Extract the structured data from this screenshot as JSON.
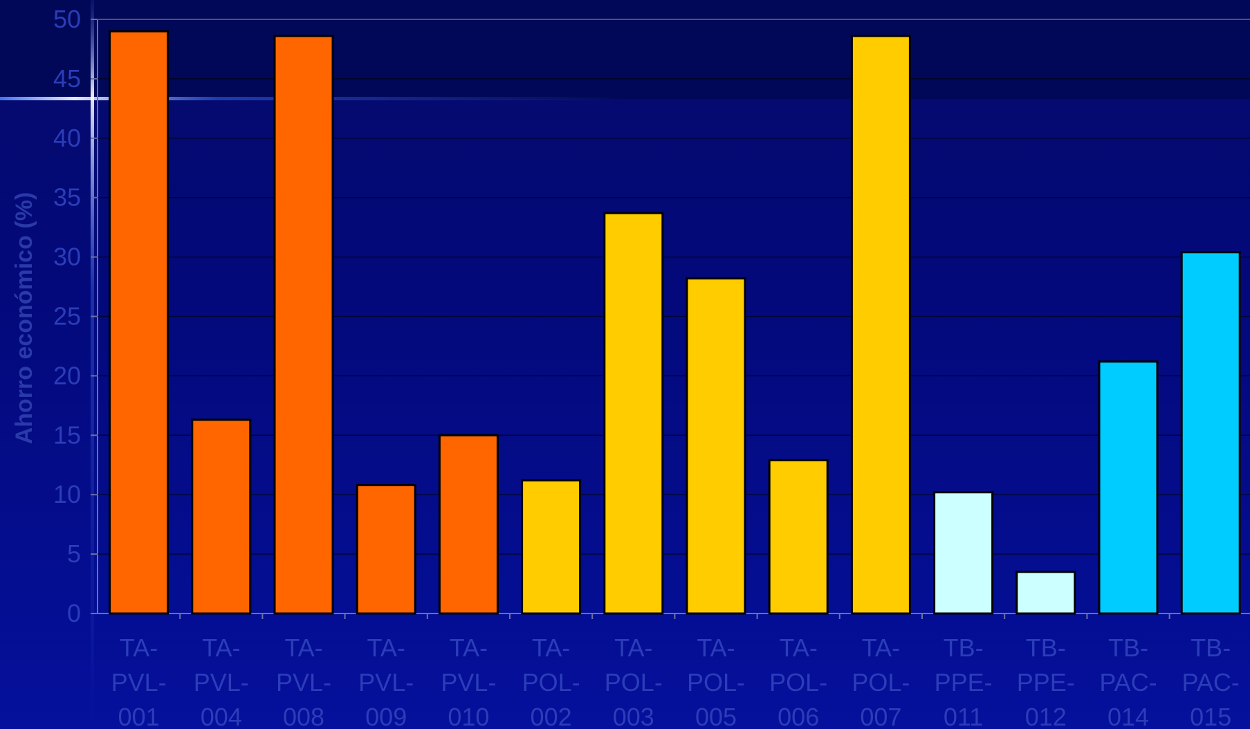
{
  "chart_data": {
    "type": "bar",
    "title": "",
    "xlabel": "",
    "ylabel": "Ahorro económico (%)",
    "ylim": [
      0,
      50
    ],
    "yticks": [
      0,
      5,
      10,
      15,
      20,
      25,
      30,
      35,
      40,
      45,
      50
    ],
    "grid": true,
    "categories": [
      "TA-PVL-001",
      "TA-PVL-004",
      "TA-PVL-008",
      "TA-PVL-009",
      "TA-PVL-010",
      "TA-POL-002",
      "TA-POL-003",
      "TA-POL-005",
      "TA-POL-006",
      "TA-POL-007",
      "TB-PPE-011",
      "TB-PPE-012",
      "TB-PAC-014",
      "TB-PAC-015"
    ],
    "category_lines": [
      [
        "TA-",
        "PVL-",
        "001"
      ],
      [
        "TA-",
        "PVL-",
        "004"
      ],
      [
        "TA-",
        "PVL-",
        "008"
      ],
      [
        "TA-",
        "PVL-",
        "009"
      ],
      [
        "TA-",
        "PVL-",
        "010"
      ],
      [
        "TA-",
        "POL-",
        "002"
      ],
      [
        "TA-",
        "POL-",
        "003"
      ],
      [
        "TA-",
        "POL-",
        "005"
      ],
      [
        "TA-",
        "POL-",
        "006"
      ],
      [
        "TA-",
        "POL-",
        "007"
      ],
      [
        "TB-",
        "PPE-",
        "011"
      ],
      [
        "TB-",
        "PPE-",
        "012"
      ],
      [
        "TB-",
        "PAC-",
        "014"
      ],
      [
        "TB-",
        "PAC-",
        "015"
      ]
    ],
    "values": [
      49.0,
      16.3,
      48.6,
      10.8,
      15.0,
      11.2,
      33.7,
      28.2,
      12.9,
      48.6,
      10.2,
      3.5,
      21.2,
      30.4
    ],
    "colors": [
      "#ff6600",
      "#ff6600",
      "#ff6600",
      "#ff6600",
      "#ff6600",
      "#ffcc00",
      "#ffcc00",
      "#ffcc00",
      "#ffcc00",
      "#ffcc00",
      "#ccffff",
      "#ccffff",
      "#00ccff",
      "#00ccff"
    ]
  },
  "theme": {
    "gridline_color": "#000000",
    "bar_outline_color": "#000000",
    "tick_label_color": "#2b3db8",
    "axis_label_color": "#2a3aa8"
  }
}
